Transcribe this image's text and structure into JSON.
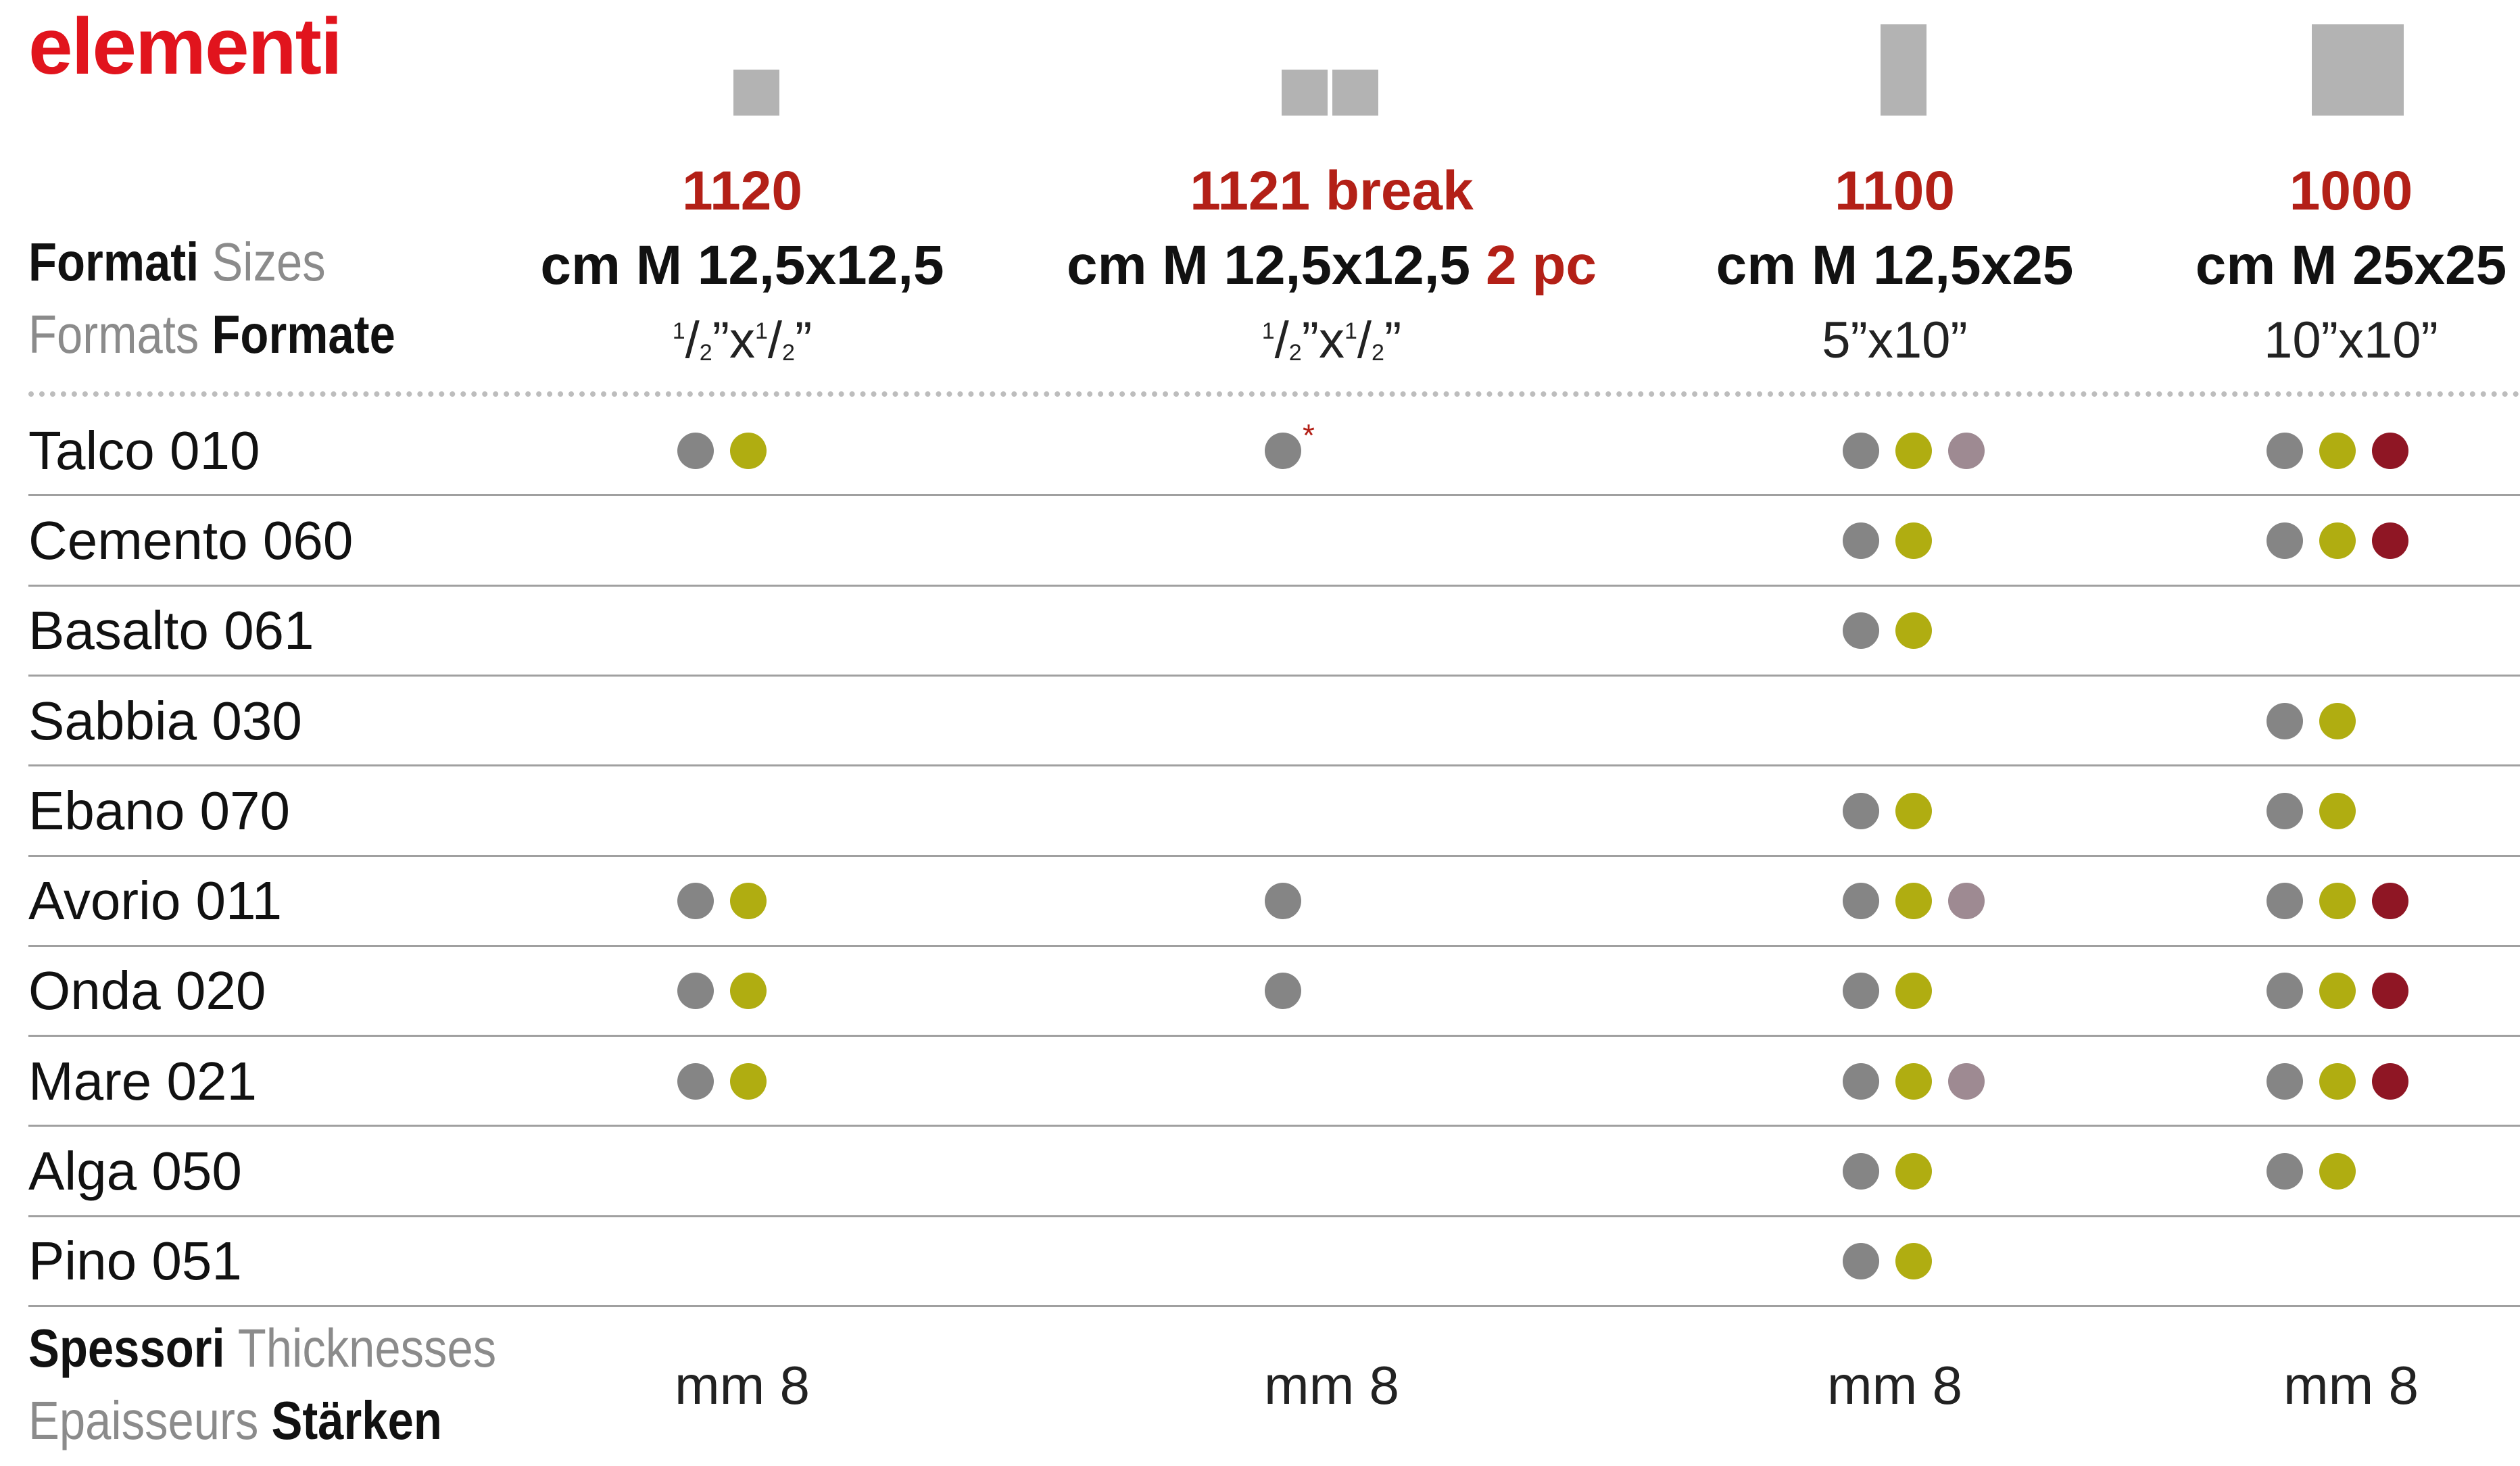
{
  "title": "elementi",
  "header": {
    "sizes_line": {
      "it": "Formati",
      "en": "Sizes"
    },
    "formats_line": {
      "fr": "Formats",
      "de": "Formate"
    }
  },
  "columns": [
    {
      "code": "1120",
      "size": "cm M 12,5x12,5",
      "pieces": "",
      "inch_num": "1",
      "inch_mid": "/",
      "inch_den": "2",
      "inch_x": "”x",
      "inch_num2": "1",
      "inch_den2": "2",
      "inch_end": "”",
      "inch_text": "",
      "thickness": "mm 8"
    },
    {
      "code": "1121 break",
      "size": "cm M 12,5x12,5",
      "pieces": "2 pc",
      "inch_num": "1",
      "inch_mid": "/",
      "inch_den": "2",
      "inch_x": "”x",
      "inch_num2": "1",
      "inch_den2": "2",
      "inch_end": "”",
      "inch_text": "",
      "thickness": "mm 8"
    },
    {
      "code": "1100",
      "size": "cm M 12,5x25",
      "pieces": "",
      "inch_text": "5”x10”",
      "thickness": "mm 8"
    },
    {
      "code": "1000",
      "size": "cm M 25x25",
      "pieces": "",
      "inch_text": "10”x10”",
      "thickness": "mm 8"
    }
  ],
  "colors": {
    "grey": "#858585",
    "olive": "#b0ad11",
    "mauve": "#9e8a92",
    "wine": "#8f1624",
    "accent_red": "#e1141d",
    "code_red": "#b32017"
  },
  "rows": [
    {
      "label": "Talco 010",
      "cells": [
        [
          "grey",
          "olive"
        ],
        [
          "grey"
        ],
        [
          "grey",
          "olive",
          "mauve"
        ],
        [
          "grey",
          "olive",
          "wine"
        ]
      ],
      "note": "*"
    },
    {
      "label": "Cemento 060",
      "cells": [
        [],
        [],
        [
          "grey",
          "olive"
        ],
        [
          "grey",
          "olive",
          "wine"
        ]
      ]
    },
    {
      "label": "Basalto 061",
      "cells": [
        [],
        [],
        [
          "grey",
          "olive"
        ],
        []
      ]
    },
    {
      "label": "Sabbia 030",
      "cells": [
        [],
        [],
        [],
        [
          "grey",
          "olive"
        ]
      ]
    },
    {
      "label": "Ebano 070",
      "cells": [
        [],
        [],
        [
          "grey",
          "olive"
        ],
        [
          "grey",
          "olive"
        ]
      ]
    },
    {
      "label": "Avorio 011",
      "cells": [
        [
          "grey",
          "olive"
        ],
        [
          "grey"
        ],
        [
          "grey",
          "olive",
          "mauve"
        ],
        [
          "grey",
          "olive",
          "wine"
        ]
      ]
    },
    {
      "label": "Onda 020",
      "cells": [
        [
          "grey",
          "olive"
        ],
        [
          "grey"
        ],
        [
          "grey",
          "olive"
        ],
        [
          "grey",
          "olive",
          "wine"
        ]
      ]
    },
    {
      "label": "Mare 021",
      "cells": [
        [
          "grey",
          "olive"
        ],
        [],
        [
          "grey",
          "olive",
          "mauve"
        ],
        [
          "grey",
          "olive",
          "wine"
        ]
      ]
    },
    {
      "label": "Alga 050",
      "cells": [
        [],
        [],
        [
          "grey",
          "olive"
        ],
        [
          "grey",
          "olive"
        ]
      ]
    },
    {
      "label": "Pino 051",
      "cells": [
        [],
        [],
        [
          "grey",
          "olive"
        ],
        []
      ]
    }
  ],
  "footer": {
    "thick_line1": {
      "it": "Spessori",
      "en": "Thicknesses"
    },
    "thick_line2": {
      "fr": "Epaisseurs",
      "de": "Stärken"
    }
  }
}
